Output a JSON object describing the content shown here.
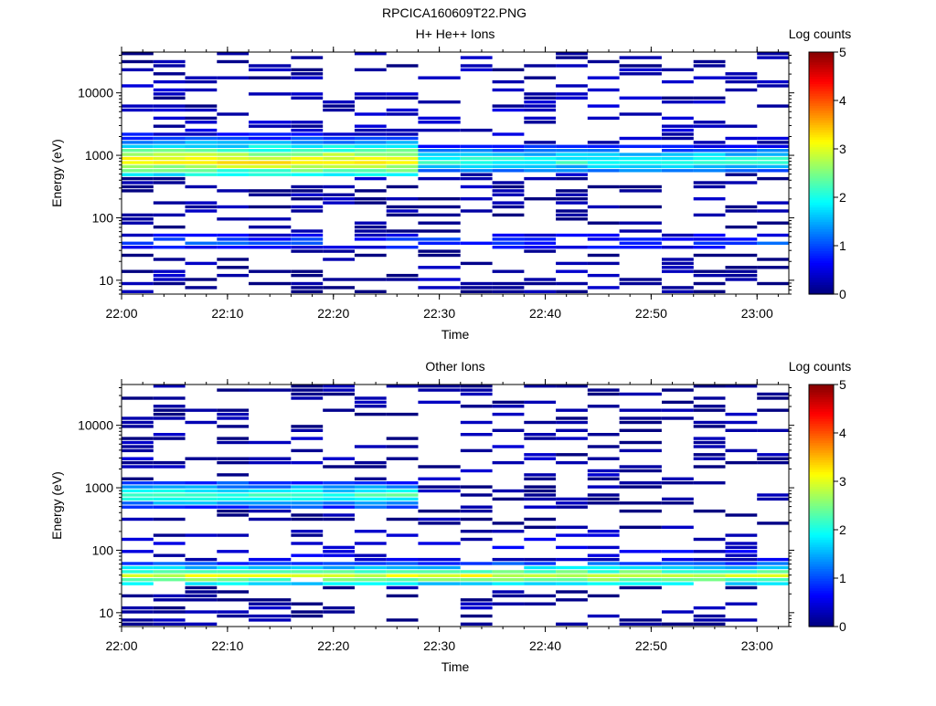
{
  "page_title": "RPCICA160609T22.PNG",
  "colorbar_ticks": [
    "0",
    "1",
    "2",
    "3",
    "4",
    "5"
  ],
  "chart_data": [
    {
      "type": "heatmap",
      "title": "H+ He++ Ions",
      "xlabel": "Time",
      "ylabel": "Energy (eV)",
      "colorbar_label": "Log counts",
      "yscale": "log",
      "ylim": [
        6,
        45000
      ],
      "xlim": [
        "22:00",
        "23:03"
      ],
      "clim": [
        0,
        5
      ],
      "x_ticks": [
        "22:00",
        "22:10",
        "22:20",
        "22:30",
        "22:40",
        "22:50",
        "23:00"
      ],
      "y_ticks": [
        "10",
        "100",
        "1000",
        "10000"
      ],
      "time_bins": [
        "22:00",
        "22:03",
        "22:06",
        "22:09",
        "22:12",
        "22:16",
        "22:19",
        "22:22",
        "22:25",
        "22:28",
        "22:32",
        "22:35",
        "22:38",
        "22:41",
        "22:44",
        "22:47",
        "22:51",
        "22:54",
        "22:57",
        "23:00"
      ],
      "bands": [
        {
          "e_min": 450,
          "e_max": 2300,
          "t_start": 0,
          "t_end": 8,
          "peak_log": 3.3,
          "peak_energy": 800,
          "note": "intense band"
        },
        {
          "e_min": 500,
          "e_max": 1500,
          "t_start": 8,
          "t_end": 19,
          "peak_log": 2.2,
          "peak_energy": 800,
          "note": "variable"
        },
        {
          "e_min": 30,
          "e_max": 60,
          "t_start": 0,
          "t_end": 19,
          "peak_log": 1.0,
          "peak_energy": 40,
          "note": "low energy"
        },
        {
          "e_min": 6,
          "e_max": 30,
          "t_start": 0,
          "t_end": 19,
          "peak_log": 0.2,
          "peak_energy": 10,
          "note": "sparse"
        },
        {
          "e_min": 60,
          "e_max": 45000,
          "t_start": 0,
          "t_end": 19,
          "peak_log": 0.3,
          "peak_energy": 3000,
          "note": "sparse background"
        }
      ]
    },
    {
      "type": "heatmap",
      "title": "Other Ions",
      "xlabel": "Time",
      "ylabel": "Energy (eV)",
      "colorbar_label": "Log counts",
      "yscale": "log",
      "ylim": [
        6,
        45000
      ],
      "xlim": [
        "22:00",
        "23:03"
      ],
      "clim": [
        0,
        5
      ],
      "x_ticks": [
        "22:00",
        "22:10",
        "22:20",
        "22:30",
        "22:40",
        "22:50",
        "23:00"
      ],
      "y_ticks": [
        "10",
        "100",
        "1000",
        "10000"
      ],
      "time_bins": [
        "22:00",
        "22:03",
        "22:06",
        "22:09",
        "22:12",
        "22:16",
        "22:19",
        "22:22",
        "22:25",
        "22:28",
        "22:32",
        "22:35",
        "22:38",
        "22:41",
        "22:44",
        "22:47",
        "22:51",
        "22:54",
        "22:57",
        "23:00"
      ],
      "bands": [
        {
          "e_min": 25,
          "e_max": 65,
          "t_start": 0,
          "t_end": 19,
          "peak_log": 3.0,
          "peak_energy": 38,
          "note": "intense low-energy band"
        },
        {
          "e_min": 450,
          "e_max": 1300,
          "t_start": 0,
          "t_end": 8,
          "peak_log": 2.2,
          "peak_energy": 750,
          "note": "band"
        },
        {
          "e_min": 65,
          "e_max": 300,
          "t_start": 0,
          "t_end": 19,
          "peak_log": 0.5,
          "peak_energy": 100,
          "note": "sparse"
        },
        {
          "e_min": 6,
          "e_max": 25,
          "t_start": 0,
          "t_end": 19,
          "peak_log": 0.2,
          "peak_energy": 10,
          "note": "sparse"
        },
        {
          "e_min": 300,
          "e_max": 45000,
          "t_start": 0,
          "t_end": 19,
          "peak_log": 0.2,
          "peak_energy": 3000,
          "note": "sparse background"
        }
      ]
    }
  ]
}
